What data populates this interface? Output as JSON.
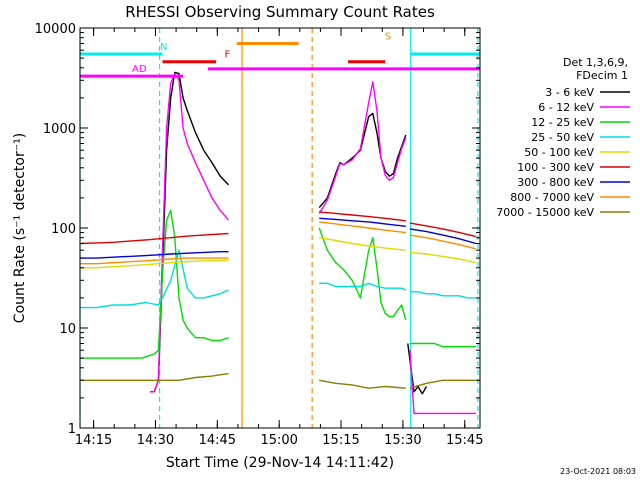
{
  "chart_data": {
    "type": "line",
    "title": "RHESSI Observing Summary Count Rates",
    "xlabel": "Start Time (29-Nov-14 14:11:42)",
    "ylabel": "Count Rate (s⁻¹ detector⁻¹)",
    "x_unit": "minutes after 14:11:42 UT",
    "xlim": [
      0,
      97
    ],
    "ylim": [
      1,
      10000
    ],
    "y_scale": "log",
    "x_ticks": [
      {
        "label": "14:15",
        "value": 3.3
      },
      {
        "label": "14:30",
        "value": 18.3
      },
      {
        "label": "14:45",
        "value": 33.3
      },
      {
        "label": "15:00",
        "value": 48.3
      },
      {
        "label": "15:15",
        "value": 63.3
      },
      {
        "label": "15:30",
        "value": 78.3
      },
      {
        "label": "15:45",
        "value": 93.3
      }
    ],
    "y_ticks": [
      {
        "label": "1",
        "value": 1
      },
      {
        "label": "10",
        "value": 10
      },
      {
        "label": "100",
        "value": 100
      },
      {
        "label": "1000",
        "value": 1000
      },
      {
        "label": "10000",
        "value": 10000
      }
    ],
    "timestamp": "23-Oct-2021 08:03",
    "legend": {
      "placement": "right",
      "header": [
        "Det 1,3,6,9,",
        "FDecim 1"
      ],
      "entries": [
        {
          "label": "3 - 6 keV",
          "color": "#000000"
        },
        {
          "label": "6 - 12 keV",
          "color": "#ff00ff"
        },
        {
          "label": "12 - 25 keV",
          "color": "#00dd00"
        },
        {
          "label": "25 - 50 keV",
          "color": "#00dddd"
        },
        {
          "label": "50 - 100 keV",
          "color": "#dddd00"
        },
        {
          "label": "100 - 300 keV",
          "color": "#dd0000"
        },
        {
          "label": "300 - 800 keV",
          "color": "#0000dd"
        },
        {
          "label": "800 - 7000 keV",
          "color": "#ff8c00"
        },
        {
          "label": "7000 - 15000 keV",
          "color": "#8b7d00"
        }
      ]
    },
    "flag_bars": [
      {
        "label": "N",
        "color": "#00eeee",
        "y": 5500,
        "segments": [
          [
            0,
            20
          ],
          [
            80,
            97
          ]
        ]
      },
      {
        "label": "S",
        "color": "#ff8c00",
        "y": 7000,
        "segments": [
          [
            38,
            53
          ]
        ]
      },
      {
        "label": "F",
        "color": "#ee0000",
        "y": 4600,
        "segments": [
          [
            20,
            33
          ],
          [
            65,
            74
          ]
        ]
      },
      {
        "label": "AD",
        "color": "#ff00ff",
        "y": 3300,
        "segments": [
          [
            0,
            19
          ],
          [
            19,
            25
          ]
        ]
      },
      {
        "label": "",
        "color": "#ff00ff",
        "y": 3900,
        "segments": [
          [
            31,
            97
          ]
        ]
      }
    ],
    "night_boundaries": [
      {
        "x": 0,
        "color": "#00eeee",
        "style": "solid"
      },
      {
        "x": 19.3,
        "color": "#00eeee",
        "style": "dashed"
      },
      {
        "x": 80.2,
        "color": "#00eeee",
        "style": "solid"
      },
      {
        "x": 96.5,
        "color": "#00eeee",
        "style": "dashed"
      }
    ],
    "saa_boundaries": [
      {
        "x": 39.3,
        "color": "#ff8c00",
        "style": "solid"
      },
      {
        "x": 56.3,
        "color": "#ff8c00",
        "style": "dashed"
      }
    ],
    "series": [
      {
        "name": "3 - 6 keV",
        "color": "#000000",
        "segments": [
          {
            "x": [
              17,
              18,
              19,
              20,
              21,
              22,
              23,
              24,
              25,
              26,
              28,
              30,
              32,
              34,
              36
            ],
            "y": [
              2.3,
              2.3,
              3,
              40,
              600,
              2000,
              3600,
              3500,
              2000,
              1500,
              900,
              600,
              450,
              330,
              270
            ]
          },
          {
            "x": [
              58,
              60,
              62,
              63,
              64,
              66,
              68,
              70,
              71,
              72,
              73,
              74,
              75,
              76,
              77,
              78,
              79
            ],
            "y": [
              160,
              200,
              350,
              450,
              430,
              500,
              600,
              1300,
              1400,
              900,
              500,
              370,
              330,
              350,
              500,
              650,
              850
            ]
          },
          {
            "x": [
              79.5,
              81,
              82,
              83,
              84
            ],
            "y": [
              7,
              2.3,
              2.6,
              2.2,
              2.6
            ]
          }
        ]
      },
      {
        "name": "6 - 12 keV",
        "color": "#ff00ff",
        "segments": [
          {
            "x": [
              17,
              18,
              19,
              20,
              21,
              22,
              23,
              24,
              25,
              26,
              28,
              30,
              32,
              34,
              36
            ],
            "y": [
              2.3,
              2.3,
              3,
              60,
              1000,
              2800,
              3500,
              3000,
              1000,
              700,
              450,
              300,
              200,
              150,
              120
            ]
          },
          {
            "x": [
              58,
              60,
              62,
              63,
              64,
              66,
              68,
              70,
              71,
              72,
              73,
              74,
              75,
              76,
              77,
              78,
              79
            ],
            "y": [
              140,
              190,
              330,
              440,
              430,
              480,
              620,
              1800,
              2900,
              1500,
              500,
              340,
              300,
              320,
              450,
              620,
              800
            ]
          },
          {
            "x": [
              80,
              81,
              83,
              85,
              87,
              89,
              91,
              93,
              95,
              96
            ],
            "y": [
              6,
              1.4,
              1.4,
              1.4,
              1.4,
              1.4,
              1.4,
              1.4,
              1.4,
              1.4
            ]
          }
        ]
      },
      {
        "name": "12 - 25 keV",
        "color": "#00dd00",
        "segments": [
          {
            "x": [
              0,
              5,
              10,
              15,
              18,
              19,
              20,
              21,
              22,
              23,
              24,
              25,
              26,
              28,
              30,
              32,
              34,
              36
            ],
            "y": [
              5,
              5,
              5,
              5,
              5.5,
              6,
              35,
              120,
              150,
              80,
              20,
              12,
              10,
              8,
              8,
              7.5,
              7.5,
              8
            ]
          },
          {
            "x": [
              58,
              60,
              62,
              64,
              66,
              68,
              70,
              71,
              72,
              73,
              74,
              75,
              76,
              77,
              78,
              79
            ],
            "y": [
              100,
              60,
              45,
              38,
              30,
              20,
              60,
              80,
              40,
              18,
              14,
              13,
              13,
              15,
              17,
              12
            ]
          },
          {
            "x": [
              80,
              82,
              84,
              86,
              88,
              90,
              92,
              94,
              96
            ],
            "y": [
              7,
              7,
              7,
              7,
              6.5,
              6.5,
              6.5,
              6.5,
              6.5
            ]
          }
        ]
      },
      {
        "name": "25 - 50 keV",
        "color": "#00dddd",
        "segments": [
          {
            "x": [
              0,
              4,
              8,
              12,
              16,
              19,
              20,
              22,
              24,
              26,
              28,
              30,
              32,
              34,
              36
            ],
            "y": [
              16,
              16,
              17,
              17,
              18,
              17,
              20,
              30,
              60,
              25,
              20,
              20,
              21,
              22,
              24
            ]
          },
          {
            "x": [
              58,
              60,
              62,
              64,
              66,
              68,
              70,
              72,
              74,
              76,
              78,
              79
            ],
            "y": [
              28,
              28,
              26,
              26,
              26,
              26,
              28,
              26,
              25,
              25,
              25,
              24
            ]
          },
          {
            "x": [
              80,
              82,
              84,
              86,
              88,
              90,
              92,
              94,
              96
            ],
            "y": [
              23,
              23,
              22,
              22,
              21,
              21,
              21,
              20,
              20
            ]
          }
        ]
      },
      {
        "name": "50 - 100 keV",
        "color": "#dddd00",
        "segments": [
          {
            "x": [
              0,
              4,
              8,
              12,
              16,
              19,
              22,
              26,
              30,
              34,
              36
            ],
            "y": [
              40,
              40,
              41,
              42,
              43,
              44,
              45,
              46,
              47,
              47,
              48
            ]
          },
          {
            "x": [
              58,
              62,
              66,
              70,
              74,
              79
            ],
            "y": [
              80,
              75,
              70,
              66,
              63,
              60
            ]
          },
          {
            "x": [
              80,
              84,
              88,
              92,
              96
            ],
            "y": [
              57,
              55,
              52,
              49,
              45
            ]
          }
        ]
      },
      {
        "name": "100 - 300 keV",
        "color": "#dd0000",
        "segments": [
          {
            "x": [
              0,
              4,
              8,
              12,
              16,
              19,
              22,
              26,
              30,
              34,
              36
            ],
            "y": [
              70,
              71,
              72,
              74,
              76,
              78,
              80,
              83,
              85,
              87,
              88
            ]
          },
          {
            "x": [
              58,
              62,
              66,
              70,
              74,
              79
            ],
            "y": [
              145,
              140,
              135,
              130,
              125,
              118
            ]
          },
          {
            "x": [
              80,
              84,
              88,
              92,
              96
            ],
            "y": [
              112,
              105,
              98,
              90,
              82
            ]
          }
        ]
      },
      {
        "name": "300 - 800 keV",
        "color": "#0000dd",
        "segments": [
          {
            "x": [
              0,
              4,
              8,
              12,
              16,
              19,
              22,
              26,
              30,
              34,
              36
            ],
            "y": [
              50,
              50,
              51,
              52,
              53,
              54,
              55,
              56,
              57,
              58,
              58
            ]
          },
          {
            "x": [
              58,
              62,
              66,
              70,
              74,
              79
            ],
            "y": [
              125,
              122,
              118,
              115,
              110,
              104
            ]
          },
          {
            "x": [
              80,
              84,
              88,
              92,
              96
            ],
            "y": [
              98,
              92,
              85,
              78,
              70
            ]
          }
        ]
      },
      {
        "name": "800 - 7000 keV",
        "color": "#ff8c00",
        "segments": [
          {
            "x": [
              0,
              4,
              8,
              12,
              16,
              19,
              22,
              26,
              30,
              34,
              36
            ],
            "y": [
              44,
              44,
              45,
              46,
              47,
              48,
              49,
              50,
              50,
              50,
              50
            ]
          },
          {
            "x": [
              58,
              62,
              66,
              70,
              74,
              79
            ],
            "y": [
              115,
              110,
              105,
              100,
              95,
              90
            ]
          },
          {
            "x": [
              80,
              84,
              88,
              92,
              96
            ],
            "y": [
              85,
              80,
              74,
              68,
              62
            ]
          }
        ]
      },
      {
        "name": "7000 - 15000 keV",
        "color": "#8b7d00",
        "segments": [
          {
            "x": [
              0,
              4,
              8,
              12,
              16,
              18,
              19,
              20,
              24,
              28,
              32,
              36
            ],
            "y": [
              3,
              3,
              3,
              3,
              3,
              3,
              3,
              3,
              3,
              3.2,
              3.3,
              3.5
            ]
          },
          {
            "x": [
              58,
              62,
              66,
              70,
              74,
              79
            ],
            "y": [
              3,
              2.8,
              2.7,
              2.5,
              2.6,
              2.5
            ]
          },
          {
            "x": [
              80,
              84,
              88,
              92,
              96
            ],
            "y": [
              2.5,
              2.8,
              3,
              3,
              3
            ]
          }
        ]
      }
    ]
  }
}
